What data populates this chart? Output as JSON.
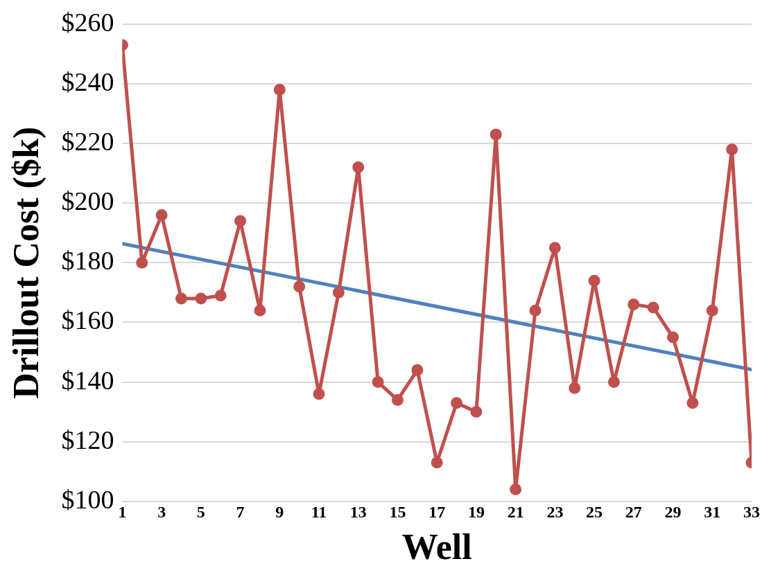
{
  "chart_data": {
    "type": "line",
    "xlabel": "Well",
    "ylabel": "Drillout Cost ($k)",
    "x": [
      1,
      2,
      3,
      4,
      5,
      6,
      7,
      8,
      9,
      10,
      11,
      12,
      13,
      14,
      15,
      16,
      17,
      18,
      19,
      20,
      21,
      22,
      23,
      24,
      25,
      26,
      27,
      28,
      29,
      30,
      31,
      32,
      33
    ],
    "series": [
      {
        "color": "#c0504d",
        "marker": "circle",
        "values": [
          253,
          180,
          196,
          168,
          168,
          169,
          194,
          164,
          238,
          172,
          136,
          170,
          212,
          140,
          134,
          144,
          113,
          133,
          130,
          223,
          104,
          164,
          185,
          138,
          174,
          140,
          166,
          165,
          155,
          133,
          164,
          218,
          113
        ]
      },
      {
        "type": "line",
        "color": "#4f81bd",
        "marker": "none",
        "x": [
          1,
          33
        ],
        "values": [
          186.4,
          144.2
        ]
      }
    ],
    "xlim": [
      1,
      33
    ],
    "xticks": [
      1,
      3,
      5,
      7,
      9,
      11,
      13,
      15,
      17,
      19,
      21,
      23,
      25,
      27,
      29,
      31,
      33
    ],
    "ylim": [
      100,
      260
    ],
    "yticks": [
      {
        "value": 100,
        "label": "$100"
      },
      {
        "value": 120,
        "label": "$120"
      },
      {
        "value": 140,
        "label": "$140"
      },
      {
        "value": 160,
        "label": "$160"
      },
      {
        "value": 180,
        "label": "$180"
      },
      {
        "value": 200,
        "label": "$200"
      },
      {
        "value": 220,
        "label": "$220"
      },
      {
        "value": 240,
        "label": "$240"
      },
      {
        "value": 260,
        "label": "$260"
      }
    ],
    "grid": "y",
    "legend": false,
    "line_style": "solid"
  }
}
